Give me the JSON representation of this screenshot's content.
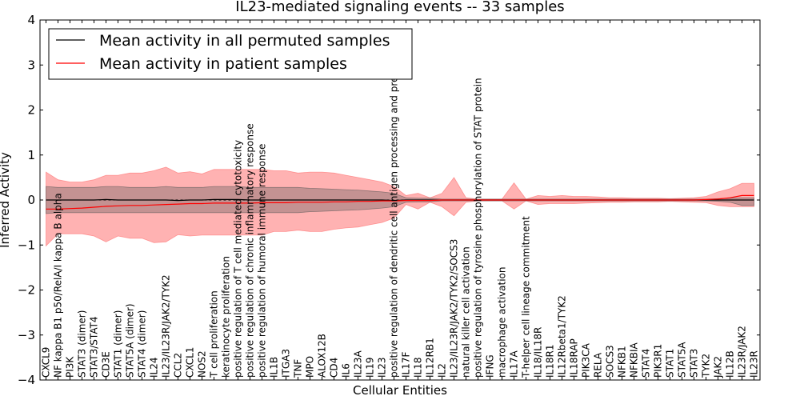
{
  "chart_data": {
    "type": "line",
    "title": "IL23-mediated signaling events -- 33 samples",
    "xlabel": "Cellular Entities",
    "ylabel": "Inferred Activity",
    "ylim": [
      -4,
      4
    ],
    "yticks": [
      -4,
      -3,
      -2,
      -1,
      0,
      1,
      2,
      3,
      4
    ],
    "ytick_labels": [
      "−4",
      "−3",
      "−2",
      "−1",
      "0",
      "1",
      "2",
      "3",
      "4"
    ],
    "grid": false,
    "legend_position": "top-left",
    "entities": [
      "CXCL9",
      "NF kappa B1 p50/RelA/I kappa B alpha",
      "PI3K",
      "STAT3 (dimer)",
      "STAT3/STAT4",
      "CD3E",
      "STAT1 (dimer)",
      "STAT5A (dimer)",
      "STAT4 (dimer)",
      "IL24",
      "IL23/IL23R/JAK2/TYK2",
      "CCL2",
      "CXCL1",
      "NOS2",
      "T cell proliferation",
      "keratinocyte proliferation",
      "positive regulation of T cell mediated cytotoxicity",
      "positive regulation of chronic inflammatory response",
      "positive regulation of humoral immune response",
      "IL1B",
      "ITGA3",
      "TNF",
      "MPO",
      "ALOX12B",
      "CD4",
      "IL6",
      "IL23A",
      "IL19",
      "IL23",
      "positive regulation of dendritic cell antigen processing and presentation",
      "IL17F",
      "IL18",
      "IL12RB1",
      "IL2",
      "IL23/IL23R/JAK2/TYK2/SOCS3",
      "natural killer cell activation",
      "positive regulation of tyrosine phosphorylation of STAT protein",
      "IFNG",
      "macrophage activation",
      "IL17A",
      "T-helper cell lineage commitment",
      "IL18/IL18R",
      "IL18R1",
      "IL12Rbeta1/TYK2",
      "IL18RAP",
      "PIK3CA",
      "RELA",
      "SOCS3",
      "NFKB1",
      "NFKBIA",
      "STAT4",
      "PIK3R1",
      "STAT1",
      "STAT5A",
      "STAT3",
      "TYK2",
      "JAK2",
      "IL12B",
      "IL23R/JAK2",
      "IL23R"
    ],
    "series": [
      {
        "name": "Mean activity in all permuted samples",
        "color": "#000000",
        "band_color": "#555555",
        "values": [
          0.0,
          0.0,
          0.0,
          0.0,
          0.0,
          0.01,
          0.0,
          0.0,
          0.0,
          0.0,
          0.0,
          -0.01,
          0.0,
          0.0,
          0.01,
          0.01,
          0.01,
          0.0,
          0.0,
          0.0,
          0.0,
          0.0,
          0.0,
          0.0,
          0.0,
          0.0,
          0.0,
          0.0,
          0.0,
          -0.01,
          0.0,
          0.0,
          0.0,
          0.0,
          0.0,
          0.0,
          0.0,
          0.0,
          0.0,
          0.0,
          0.0,
          0.0,
          0.0,
          0.0,
          0.0,
          0.0,
          0.0,
          0.0,
          0.0,
          0.0,
          0.0,
          0.0,
          0.0,
          0.0,
          0.0,
          0.0,
          0.0,
          0.0,
          0.0,
          0.0
        ],
        "upper": [
          0.3,
          0.28,
          0.28,
          0.28,
          0.28,
          0.3,
          0.3,
          0.28,
          0.28,
          0.28,
          0.3,
          0.28,
          0.28,
          0.28,
          0.3,
          0.3,
          0.3,
          0.28,
          0.28,
          0.28,
          0.28,
          0.28,
          0.26,
          0.25,
          0.24,
          0.23,
          0.22,
          0.2,
          0.18,
          0.15,
          0.05,
          0.04,
          0.04,
          0.02,
          0.02,
          0.02,
          0.02,
          0.02,
          0.02,
          0.02,
          0.02,
          0.02,
          0.02,
          0.02,
          0.02,
          0.02,
          0.02,
          0.02,
          0.02,
          0.02,
          0.02,
          0.02,
          0.02,
          0.02,
          0.02,
          0.02,
          0.03,
          0.04,
          0.05,
          0.05
        ],
        "lower": [
          -0.3,
          -0.28,
          -0.28,
          -0.28,
          -0.28,
          -0.28,
          -0.28,
          -0.28,
          -0.28,
          -0.28,
          -0.28,
          -0.28,
          -0.28,
          -0.28,
          -0.28,
          -0.28,
          -0.28,
          -0.28,
          -0.28,
          -0.28,
          -0.28,
          -0.28,
          -0.26,
          -0.25,
          -0.24,
          -0.23,
          -0.22,
          -0.2,
          -0.18,
          -0.15,
          -0.05,
          -0.04,
          -0.04,
          -0.02,
          -0.02,
          -0.02,
          -0.02,
          -0.02,
          -0.02,
          -0.02,
          -0.02,
          -0.02,
          -0.02,
          -0.02,
          -0.02,
          -0.02,
          -0.02,
          -0.02,
          -0.02,
          -0.02,
          -0.02,
          -0.02,
          -0.02,
          -0.02,
          -0.02,
          -0.02,
          -0.03,
          -0.05,
          -0.12,
          -0.12
        ]
      },
      {
        "name": "Mean activity in patient samples",
        "color": "#ff0000",
        "band_color": "#ff6666",
        "values": [
          -0.2,
          -0.2,
          -0.19,
          -0.18,
          -0.16,
          -0.14,
          -0.13,
          -0.12,
          -0.12,
          -0.11,
          -0.1,
          -0.09,
          -0.08,
          -0.08,
          -0.07,
          -0.07,
          -0.07,
          -0.07,
          -0.06,
          -0.06,
          -0.06,
          -0.05,
          -0.05,
          -0.05,
          -0.04,
          -0.04,
          -0.03,
          -0.03,
          -0.02,
          -0.02,
          -0.01,
          -0.01,
          -0.01,
          0.0,
          0.0,
          0.0,
          0.0,
          0.0,
          0.0,
          0.0,
          0.0,
          0.0,
          0.0,
          0.0,
          0.0,
          0.0,
          0.0,
          0.0,
          0.0,
          0.0,
          0.0,
          0.0,
          0.0,
          0.0,
          0.0,
          0.01,
          0.02,
          0.05,
          0.1,
          0.1
        ],
        "upper": [
          0.62,
          0.45,
          0.4,
          0.4,
          0.45,
          0.55,
          0.55,
          0.6,
          0.6,
          0.65,
          0.73,
          0.6,
          0.63,
          0.58,
          0.68,
          0.68,
          0.68,
          0.68,
          0.68,
          0.65,
          0.65,
          0.6,
          0.62,
          0.62,
          0.6,
          0.55,
          0.5,
          0.45,
          0.4,
          0.3,
          0.1,
          0.15,
          0.05,
          0.15,
          0.5,
          0.05,
          0.02,
          0.02,
          0.02,
          0.38,
          0.02,
          0.1,
          0.08,
          0.1,
          0.08,
          0.08,
          0.07,
          0.05,
          0.05,
          0.04,
          0.04,
          0.04,
          0.03,
          0.04,
          0.05,
          0.08,
          0.18,
          0.25,
          0.37,
          0.37
        ],
        "lower": [
          -1.02,
          -0.75,
          -0.75,
          -0.75,
          -0.8,
          -0.93,
          -0.8,
          -0.85,
          -0.85,
          -0.95,
          -0.93,
          -0.77,
          -0.8,
          -0.78,
          -0.78,
          -0.78,
          -0.78,
          -0.78,
          -0.78,
          -0.7,
          -0.7,
          -0.67,
          -0.7,
          -0.7,
          -0.65,
          -0.62,
          -0.6,
          -0.55,
          -0.5,
          -0.4,
          -0.1,
          -0.2,
          -0.05,
          -0.15,
          -0.35,
          -0.05,
          -0.02,
          -0.02,
          -0.02,
          -0.2,
          -0.02,
          -0.1,
          -0.08,
          -0.08,
          -0.08,
          -0.07,
          -0.06,
          -0.05,
          -0.05,
          -0.04,
          -0.04,
          -0.04,
          -0.03,
          -0.04,
          -0.05,
          -0.06,
          -0.12,
          -0.15,
          -0.15,
          -0.15
        ]
      }
    ]
  }
}
